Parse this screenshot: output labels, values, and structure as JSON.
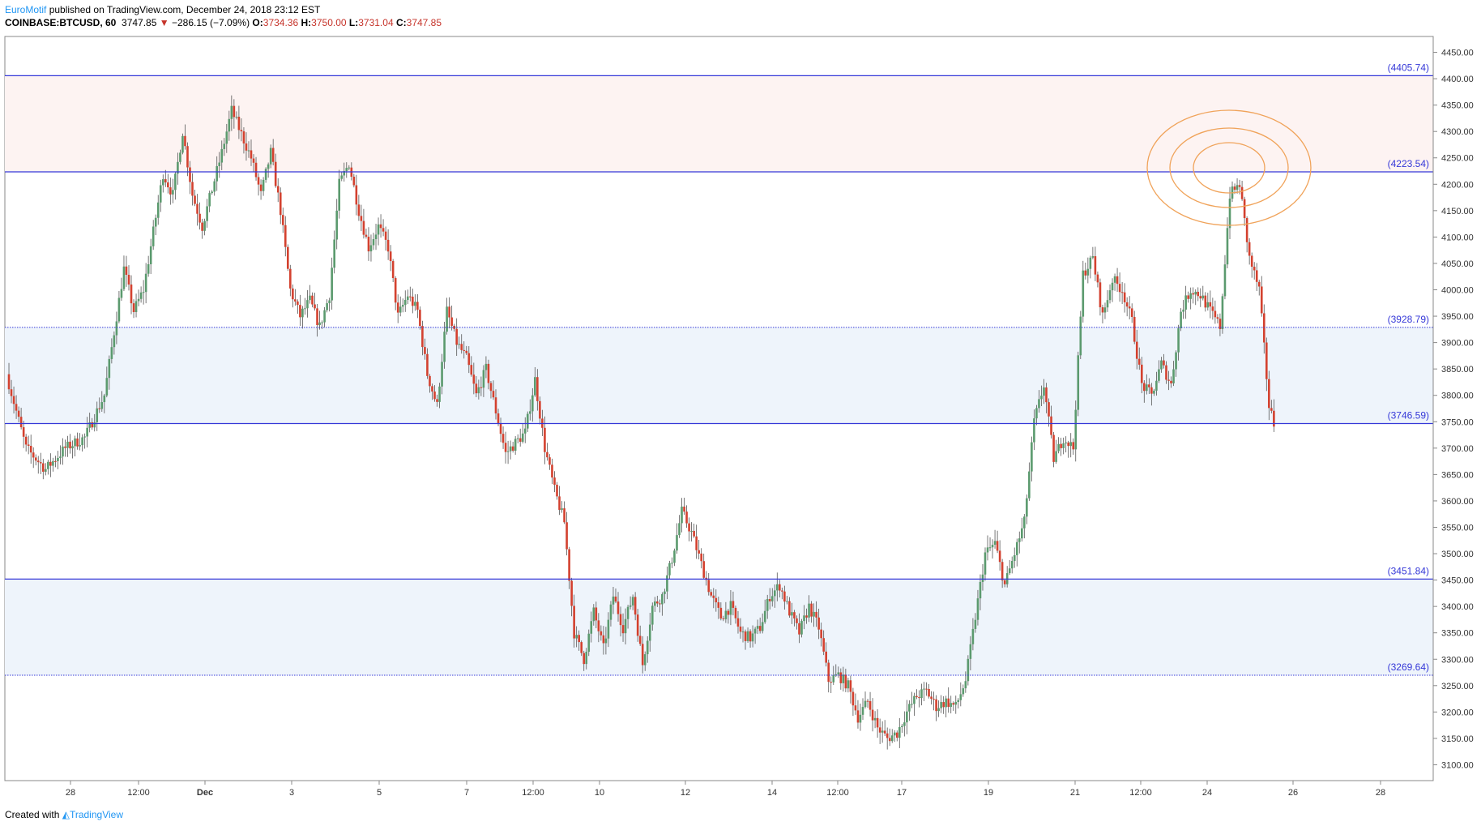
{
  "header": {
    "author": "EuroMotif",
    "published": " published on TradingView.com, December 24, 2018 23:12 EST",
    "symbol": "COINBASE:BTCUSD, 60",
    "last": "3747.85",
    "change_arrow": "▼",
    "change": "−286.15 (−7.09%)",
    "o_label": "O:",
    "o_value": "3734.36",
    "h_label": "H:",
    "h_value": "3750.00",
    "l_label": "L:",
    "l_value": "3731.04",
    "c_label": "C:",
    "c_value": "3747.85"
  },
  "footer": {
    "created_with": "Created with",
    "brand": "TradingView"
  },
  "colors": {
    "up": "#5b9a6e",
    "down": "#d3412f",
    "level_line": "#3538d8",
    "circle": "#f0a35a",
    "resistance_zone": "#fdf3f2",
    "support_zone": "#eef4fb"
  },
  "chart_data": {
    "type": "candlestick",
    "ylim": [
      3070,
      4480
    ],
    "y_ticks": [
      "4450.00",
      "4400.00",
      "4350.00",
      "4300.00",
      "4250.00",
      "4200.00",
      "4150.00",
      "4100.00",
      "4050.00",
      "4000.00",
      "3950.00",
      "3900.00",
      "3850.00",
      "3800.00",
      "3750.00",
      "3700.00",
      "3650.00",
      "3600.00",
      "3550.00",
      "3500.00",
      "3450.00",
      "3400.00",
      "3350.00",
      "3300.00",
      "3250.00",
      "3200.00",
      "3150.00",
      "3100.00"
    ],
    "x_ticks": [
      "28",
      "12:00",
      "Dec",
      "3",
      "5",
      "7",
      "12:00",
      "10",
      "12",
      "14",
      "12:00",
      "17",
      "19",
      "21",
      "12:00",
      "24",
      "26",
      "28"
    ],
    "levels": [
      {
        "label": "(4405.74)",
        "value": 4405.74,
        "style": "solid"
      },
      {
        "label": "(4223.54)",
        "value": 4223.54,
        "style": "solid"
      },
      {
        "label": "(3928.79)",
        "value": 3928.79,
        "style": "dotted"
      },
      {
        "label": "(3746.59)",
        "value": 3746.59,
        "style": "solid"
      },
      {
        "label": "(3451.84)",
        "value": 3451.84,
        "style": "solid"
      },
      {
        "label": "(3269.64)",
        "value": 3269.64,
        "style": "dotted"
      }
    ],
    "zones": [
      {
        "from": 4223.54,
        "to": 4405.74,
        "kind": "resistance"
      },
      {
        "from": 3746.59,
        "to": 3928.79,
        "kind": "support"
      },
      {
        "from": 3269.64,
        "to": 3451.84,
        "kind": "support"
      }
    ],
    "price_anchors": [
      [
        0,
        3840
      ],
      [
        2,
        3700
      ],
      [
        4,
        3660
      ],
      [
        6,
        3700
      ],
      [
        8,
        3720
      ],
      [
        10,
        3800
      ],
      [
        11,
        3920
      ],
      [
        12,
        4040
      ],
      [
        13,
        3960
      ],
      [
        14,
        4000
      ],
      [
        16,
        4220
      ],
      [
        17,
        4180
      ],
      [
        18,
        4300
      ],
      [
        19,
        4180
      ],
      [
        20,
        4120
      ],
      [
        22,
        4260
      ],
      [
        23,
        4340
      ],
      [
        25,
        4250
      ],
      [
        26,
        4180
      ],
      [
        27,
        4260
      ],
      [
        28,
        4150
      ],
      [
        29,
        4000
      ],
      [
        30,
        3950
      ],
      [
        31,
        3980
      ],
      [
        32,
        3930
      ],
      [
        33,
        3990
      ],
      [
        34,
        4200
      ],
      [
        35,
        4240
      ],
      [
        36,
        4150
      ],
      [
        37,
        4080
      ],
      [
        38,
        4120
      ],
      [
        39,
        4080
      ],
      [
        40,
        3950
      ],
      [
        41,
        3990
      ],
      [
        42,
        3960
      ],
      [
        43,
        3840
      ],
      [
        44,
        3780
      ],
      [
        45,
        3960
      ],
      [
        46,
        3900
      ],
      [
        47,
        3870
      ],
      [
        48,
        3800
      ],
      [
        49,
        3850
      ],
      [
        50,
        3770
      ],
      [
        51,
        3690
      ],
      [
        53,
        3730
      ],
      [
        54,
        3830
      ],
      [
        55,
        3700
      ],
      [
        56,
        3620
      ],
      [
        57,
        3560
      ],
      [
        58,
        3350
      ],
      [
        59,
        3300
      ],
      [
        60,
        3390
      ],
      [
        61,
        3320
      ],
      [
        62,
        3420
      ],
      [
        63,
        3360
      ],
      [
        64,
        3420
      ],
      [
        65,
        3290
      ],
      [
        66,
        3400
      ],
      [
        67,
        3420
      ],
      [
        68,
        3490
      ],
      [
        69,
        3580
      ],
      [
        70,
        3540
      ],
      [
        71,
        3480
      ],
      [
        72,
        3420
      ],
      [
        73,
        3380
      ],
      [
        74,
        3400
      ],
      [
        75,
        3350
      ],
      [
        76,
        3340
      ],
      [
        77,
        3360
      ],
      [
        78,
        3420
      ],
      [
        79,
        3440
      ],
      [
        80,
        3390
      ],
      [
        81,
        3350
      ],
      [
        82,
        3400
      ],
      [
        83,
        3360
      ],
      [
        84,
        3260
      ],
      [
        85,
        3270
      ],
      [
        86,
        3250
      ],
      [
        87,
        3190
      ],
      [
        88,
        3220
      ],
      [
        89,
        3170
      ],
      [
        90,
        3150
      ],
      [
        91,
        3160
      ],
      [
        92,
        3200
      ],
      [
        93,
        3230
      ],
      [
        94,
        3240
      ],
      [
        95,
        3210
      ],
      [
        96,
        3220
      ],
      [
        97,
        3210
      ],
      [
        98,
        3260
      ],
      [
        99,
        3380
      ],
      [
        100,
        3500
      ],
      [
        101,
        3520
      ],
      [
        102,
        3440
      ],
      [
        103,
        3500
      ],
      [
        104,
        3560
      ],
      [
        105,
        3750
      ],
      [
        106,
        3820
      ],
      [
        107,
        3680
      ],
      [
        108,
        3720
      ],
      [
        109,
        3700
      ],
      [
        110,
        4030
      ],
      [
        111,
        4060
      ],
      [
        112,
        3950
      ],
      [
        113,
        4020
      ],
      [
        114,
        4000
      ],
      [
        115,
        3940
      ],
      [
        116,
        3820
      ],
      [
        117,
        3800
      ],
      [
        118,
        3860
      ],
      [
        119,
        3820
      ],
      [
        120,
        3960
      ],
      [
        121,
        4000
      ],
      [
        122,
        3990
      ],
      [
        123,
        3960
      ],
      [
        124,
        3930
      ],
      [
        125,
        4180
      ],
      [
        126,
        4200
      ],
      [
        127,
        4060
      ],
      [
        128,
        4000
      ],
      [
        129,
        3780
      ],
      [
        129.5,
        3747
      ]
    ]
  }
}
